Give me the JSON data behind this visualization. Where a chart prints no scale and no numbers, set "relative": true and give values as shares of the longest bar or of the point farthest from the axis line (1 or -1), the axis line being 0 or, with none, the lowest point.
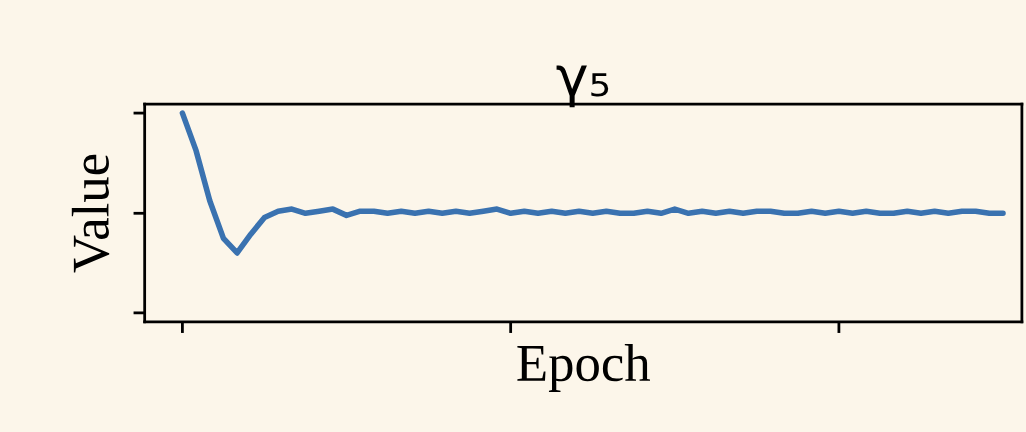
{
  "chart_data": {
    "type": "line",
    "title": "γ₅",
    "xlabel": "Epoch",
    "ylabel": "Value",
    "relative": true,
    "tick_labels": false,
    "grid": false,
    "categories": [
      null,
      null,
      null,
      null,
      null,
      null,
      null,
      null,
      null,
      null,
      null,
      null,
      null,
      null,
      null,
      null,
      null,
      null,
      null,
      null,
      null,
      null,
      null,
      null,
      null,
      null,
      null,
      null,
      null,
      null,
      null,
      null,
      null,
      null,
      null,
      null,
      null,
      null,
      null,
      null,
      null,
      null,
      null,
      null,
      null,
      null,
      null,
      null,
      null,
      null,
      null,
      null,
      null,
      null,
      null,
      null,
      null,
      null,
      null,
      null,
      null
    ],
    "series": [
      {
        "color": "#3a72b0",
        "values": [
          1.0,
          0.82,
          0.58,
          0.4,
          0.33,
          0.42,
          0.5,
          0.53,
          0.54,
          0.52,
          0.53,
          0.54,
          0.51,
          0.53,
          0.53,
          0.52,
          0.53,
          0.52,
          0.53,
          0.52,
          0.53,
          0.52,
          0.53,
          0.54,
          0.52,
          0.53,
          0.52,
          0.53,
          0.52,
          0.53,
          0.52,
          0.53,
          0.52,
          0.52,
          0.53,
          0.52,
          0.54,
          0.52,
          0.53,
          0.52,
          0.53,
          0.52,
          0.53,
          0.53,
          0.52,
          0.52,
          0.53,
          0.52,
          0.53,
          0.52,
          0.53,
          0.52,
          0.52,
          0.53,
          0.52,
          0.53,
          0.52,
          0.53,
          0.53,
          0.52,
          0.52
        ]
      }
    ]
  }
}
